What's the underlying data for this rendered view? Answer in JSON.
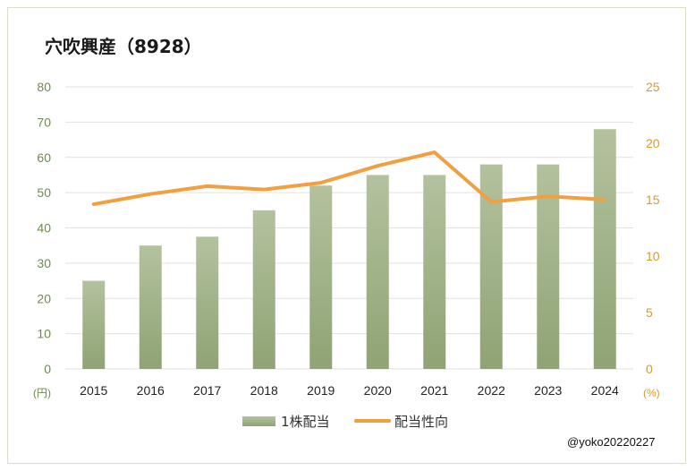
{
  "chart_data": {
    "type": "bar+line",
    "title": "穴吹興産（8928）",
    "categories": [
      "2015",
      "2016",
      "2017",
      "2018",
      "2019",
      "2020",
      "2021",
      "2022",
      "2023",
      "2024"
    ],
    "series": [
      {
        "name": "1株配当",
        "type": "bar",
        "axis": "left",
        "values": [
          25,
          35,
          37.5,
          45,
          52,
          55,
          55,
          58,
          58,
          68
        ]
      },
      {
        "name": "配当性向",
        "type": "line",
        "axis": "right",
        "values": [
          14.6,
          15.5,
          16.2,
          15.9,
          16.5,
          18,
          19.2,
          14.8,
          15.3,
          15
        ]
      }
    ],
    "left_axis": {
      "unit": "(円)",
      "ylim": [
        0,
        80
      ],
      "ticks": [
        0,
        10,
        20,
        30,
        40,
        50,
        60,
        70,
        80
      ]
    },
    "right_axis": {
      "unit": "(%)",
      "ylim": [
        0,
        25
      ],
      "ticks": [
        0,
        5,
        10,
        15,
        20,
        25
      ]
    },
    "grid": true,
    "legend_position": "bottom"
  },
  "credit": "@yoko20220227",
  "colors": {
    "bar_top": "#b3c29e",
    "bar_bottom": "#8fa374",
    "line": "#f0a040",
    "left_axis_text": "#6f8a4e",
    "right_axis_text": "#d79a34",
    "grid": "#e2e2dc"
  }
}
